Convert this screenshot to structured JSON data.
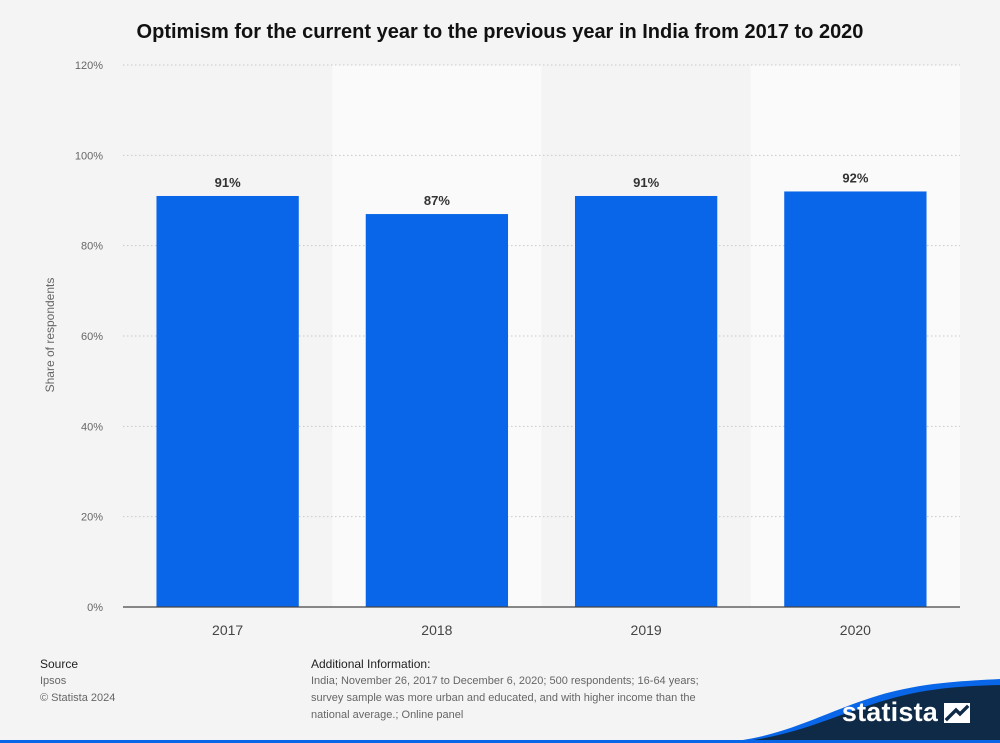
{
  "title": "Optimism for the current year to the previous year in India from 2017 to 2020",
  "chart_data": {
    "type": "bar",
    "title": "Optimism for the current year to the previous year in India from 2017 to 2020",
    "categories": [
      "2017",
      "2018",
      "2019",
      "2020"
    ],
    "values": [
      91,
      87,
      91,
      92
    ],
    "data_labels": [
      "91%",
      "87%",
      "91%",
      "92%"
    ],
    "ylabel": "Share of respondents",
    "xlabel": "",
    "ylim": [
      0,
      120
    ],
    "yticks": [
      0,
      20,
      40,
      60,
      80,
      100,
      120
    ],
    "ytick_labels": [
      "0%",
      "20%",
      "40%",
      "60%",
      "80%",
      "100%",
      "120%"
    ],
    "grid": true,
    "bar_color": "#0a66e8",
    "alternating_band_colors": [
      "#f4f4f4",
      "#fafafa"
    ]
  },
  "footer": {
    "source_heading": "Source",
    "source_lines": [
      "Ipsos",
      "© Statista 2024"
    ],
    "additional_heading": "Additional Information:",
    "additional_text": "India; November 26, 2017 to December 6, 2020; 500 respondents; 16-64 years; survey sample was more urban and educated, and with higher income than the national average.; Online panel"
  },
  "brand": {
    "name": "statista",
    "icon": "statista-logo-icon",
    "colors": {
      "navy": "#0f2a47",
      "accent": "#0a66e8"
    }
  }
}
